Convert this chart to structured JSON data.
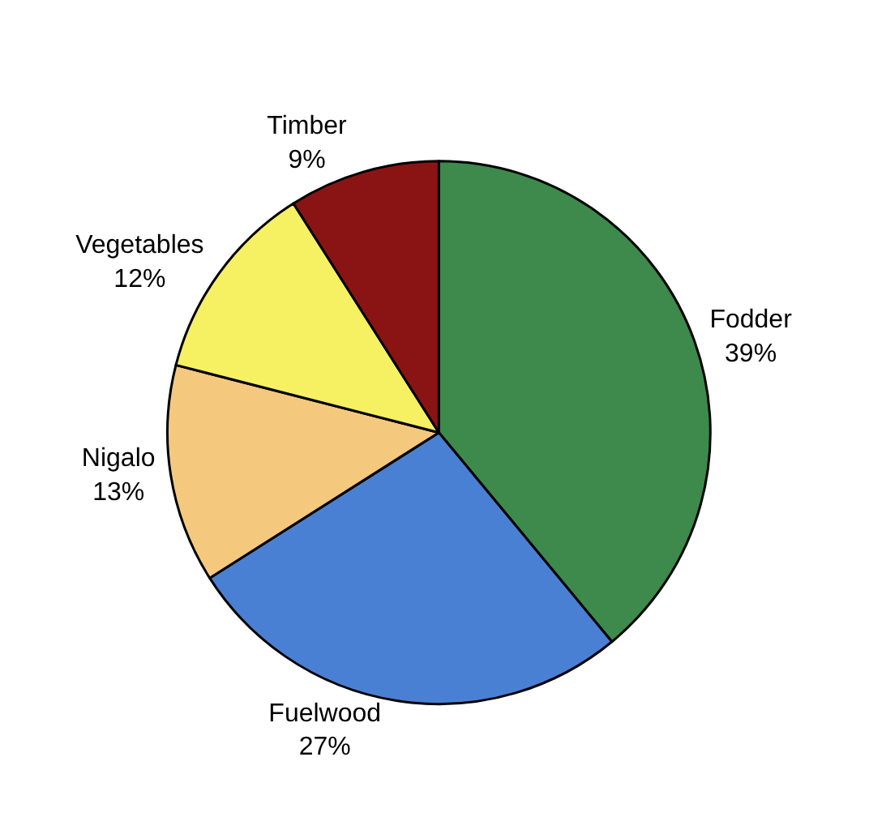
{
  "chart_data": {
    "type": "pie",
    "categories": [
      "Fodder",
      "Fuelwood",
      "Nigalo",
      "Vegetables",
      "Timber"
    ],
    "values": [
      39,
      27,
      13,
      12,
      9
    ],
    "value_labels": [
      "39%",
      "27%",
      "13%",
      "12%",
      "9%"
    ],
    "colors": [
      "#3d8a4c",
      "#4a80d4",
      "#f4c97e",
      "#f6f063",
      "#8a1414"
    ],
    "legend": false
  }
}
